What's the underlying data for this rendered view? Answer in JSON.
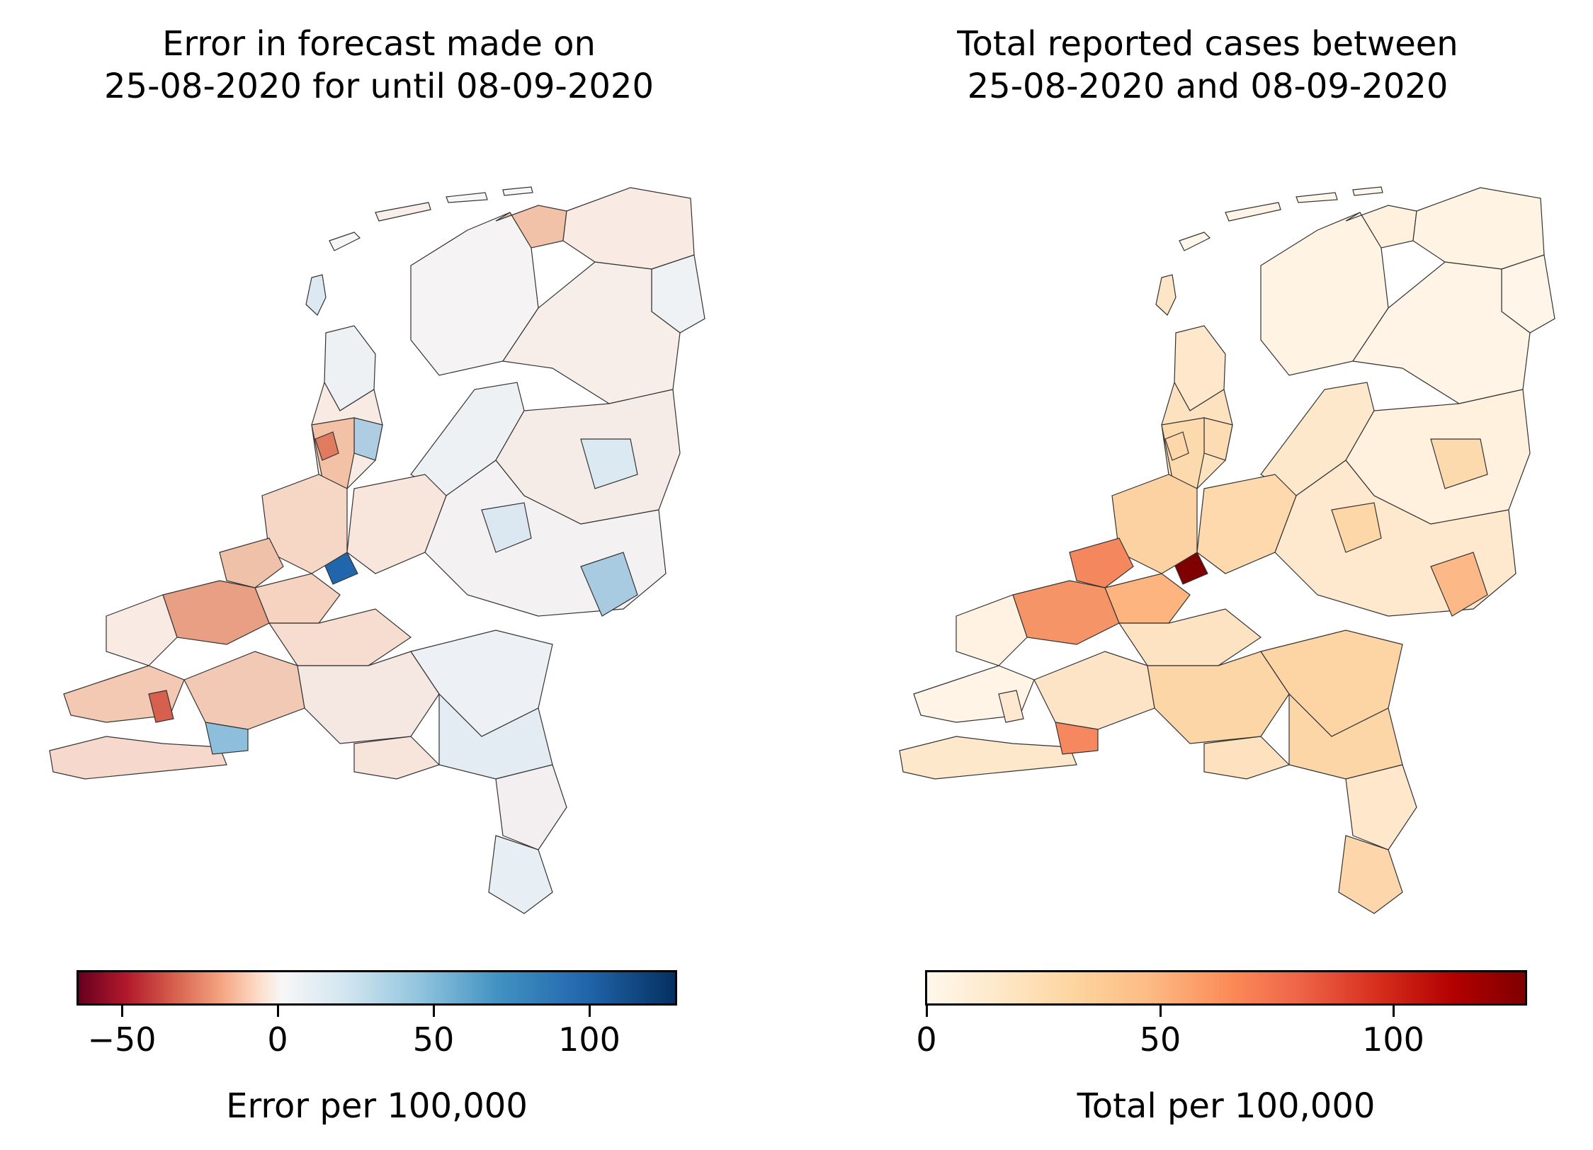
{
  "left_panel": {
    "title": "Error in forecast made on\n25-08-2020 for until 08-09-2020",
    "colorbar": {
      "label": "Error per 100,000",
      "colormap": "RdBu",
      "range": [
        -65,
        128
      ],
      "ticks": [
        {
          "value": -50,
          "label": "−50"
        },
        {
          "value": 0,
          "label": "0"
        },
        {
          "value": 50,
          "label": "50"
        },
        {
          "value": 100,
          "label": "100"
        }
      ]
    }
  },
  "right_panel": {
    "title": "Total reported cases between\n25-08-2020 and 08-09-2020",
    "colorbar": {
      "label": "Total per 100,000",
      "colormap": "OrRd",
      "range": [
        0,
        129
      ],
      "ticks": [
        {
          "value": 0,
          "label": "0"
        },
        {
          "value": 50,
          "label": "50"
        },
        {
          "value": 100,
          "label": "100"
        }
      ]
    }
  },
  "colors": {
    "border": "#333333",
    "background": "#ffffff"
  }
}
